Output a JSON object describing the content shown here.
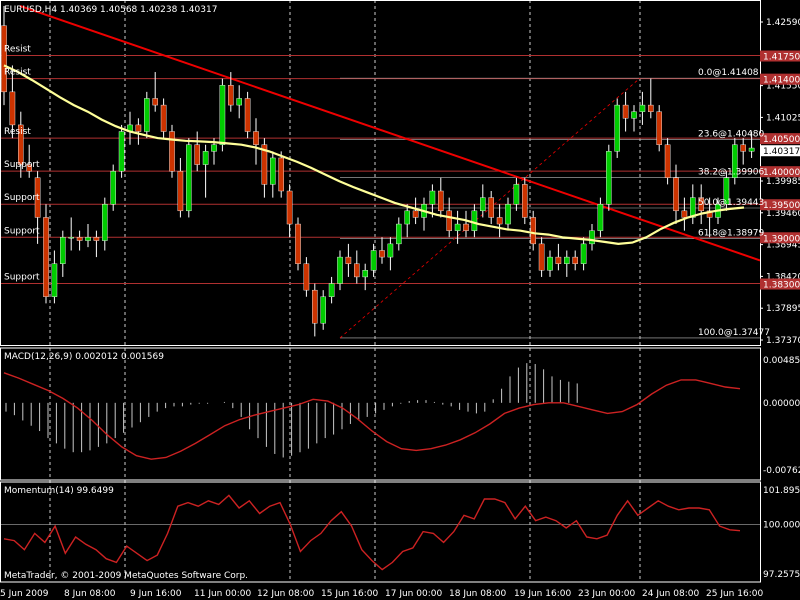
{
  "window": {
    "symbol_header": "EURUSD,H4  1.40369 1.40568 1.40238 1.40317",
    "copyright": "MetaTrader, © 2001-2009 MetaQuotes Software Corp."
  },
  "colors": {
    "background": "#000000",
    "bull_candle": "#00cc00",
    "bear_candle": "#cc3300",
    "moving_average": "#ffff99",
    "trendline": "#ee0000",
    "level_lines": "#b03030",
    "macd_histogram": "#c8c8c8",
    "macd_signal": "#cc2222",
    "momentum": "#cc2222",
    "grid": "#ffffff"
  },
  "chart_data": [
    {
      "type": "candlestick",
      "symbol": "EURUSD",
      "timeframe": "H4",
      "ohlc_current": {
        "open": 1.40369,
        "high": 1.40568,
        "low": 1.40238,
        "close": 1.40317
      },
      "current_price_label": "1.40317",
      "ylim": [
        1.3737,
        1.4259
      ],
      "y_tick_labels": [
        "1.42590",
        "1.42065",
        "1.41550",
        "1.41025",
        "1.40505",
        "1.39985",
        "1.39460",
        "1.38945",
        "1.38420",
        "1.37895",
        "1.37370"
      ],
      "x_tick_labels": [
        "5 Jun 2009",
        "8 Jun 08:00",
        "9 Jun 16:00",
        "11 Jun 00:00",
        "12 Jun 08:00",
        "15 Jun 16:00",
        "17 Jun 00:00",
        "18 Jun 08:00",
        "19 Jun 16:00",
        "23 Jun 00:00",
        "24 Jun 08:00",
        "25 Jun 16:00"
      ],
      "candles": [
        [
          1.422,
          1.425,
          1.41,
          1.412
        ],
        [
          1.412,
          1.416,
          1.405,
          1.407
        ],
        [
          1.407,
          1.409,
          1.399,
          1.401
        ],
        [
          1.401,
          1.404,
          1.399,
          1.4
        ],
        [
          1.399,
          1.4,
          1.389,
          1.393
        ],
        [
          1.393,
          1.395,
          1.38,
          1.381
        ],
        [
          1.381,
          1.388,
          1.38,
          1.386
        ],
        [
          1.386,
          1.391,
          1.384,
          1.39
        ],
        [
          1.39,
          1.393,
          1.388,
          1.39
        ],
        [
          1.39,
          1.391,
          1.388,
          1.3895
        ],
        [
          1.3895,
          1.392,
          1.3885,
          1.39
        ],
        [
          1.39,
          1.391,
          1.387,
          1.3895
        ],
        [
          1.3895,
          1.396,
          1.388,
          1.395
        ],
        [
          1.395,
          1.401,
          1.394,
          1.4
        ],
        [
          1.4,
          1.407,
          1.399,
          1.406
        ],
        [
          1.406,
          1.409,
          1.404,
          1.407
        ],
        [
          1.407,
          1.408,
          1.404,
          1.406
        ],
        [
          1.406,
          1.412,
          1.405,
          1.411
        ],
        [
          1.411,
          1.415,
          1.409,
          1.41
        ],
        [
          1.41,
          1.411,
          1.405,
          1.406
        ],
        [
          1.406,
          1.407,
          1.399,
          1.4
        ],
        [
          1.4,
          1.402,
          1.393,
          1.394
        ],
        [
          1.394,
          1.405,
          1.393,
          1.404
        ],
        [
          1.404,
          1.406,
          1.4,
          1.401
        ],
        [
          1.401,
          1.404,
          1.396,
          1.403
        ],
        [
          1.403,
          1.405,
          1.401,
          1.404
        ],
        [
          1.404,
          1.414,
          1.403,
          1.413
        ],
        [
          1.413,
          1.415,
          1.409,
          1.41
        ],
        [
          1.41,
          1.413,
          1.408,
          1.411
        ],
        [
          1.411,
          1.412,
          1.405,
          1.406
        ],
        [
          1.406,
          1.408,
          1.401,
          1.404
        ],
        [
          1.404,
          1.405,
          1.396,
          1.398
        ],
        [
          1.398,
          1.403,
          1.396,
          1.402
        ],
        [
          1.402,
          1.403,
          1.396,
          1.397
        ],
        [
          1.397,
          1.398,
          1.39,
          1.392
        ],
        [
          1.392,
          1.393,
          1.385,
          1.386
        ],
        [
          1.386,
          1.387,
          1.381,
          1.382
        ],
        [
          1.382,
          1.383,
          1.375,
          1.377
        ],
        [
          1.377,
          1.382,
          1.376,
          1.381
        ],
        [
          1.381,
          1.384,
          1.38,
          1.383
        ],
        [
          1.383,
          1.388,
          1.382,
          1.387
        ],
        [
          1.387,
          1.389,
          1.384,
          1.386
        ],
        [
          1.386,
          1.388,
          1.383,
          1.384
        ],
        [
          1.384,
          1.386,
          1.382,
          1.385
        ],
        [
          1.385,
          1.389,
          1.384,
          1.388
        ],
        [
          1.388,
          1.39,
          1.386,
          1.387
        ],
        [
          1.387,
          1.39,
          1.385,
          1.389
        ],
        [
          1.389,
          1.393,
          1.388,
          1.392
        ],
        [
          1.392,
          1.395,
          1.39,
          1.394
        ],
        [
          1.394,
          1.396,
          1.392,
          1.393
        ],
        [
          1.393,
          1.396,
          1.391,
          1.395
        ],
        [
          1.395,
          1.398,
          1.393,
          1.397
        ],
        [
          1.397,
          1.399,
          1.393,
          1.394
        ],
        [
          1.394,
          1.396,
          1.39,
          1.391
        ],
        [
          1.391,
          1.394,
          1.389,
          1.392
        ],
        [
          1.392,
          1.394,
          1.39,
          1.391
        ],
        [
          1.391,
          1.395,
          1.39,
          1.394
        ],
        [
          1.394,
          1.398,
          1.393,
          1.396
        ],
        [
          1.396,
          1.397,
          1.392,
          1.393
        ],
        [
          1.393,
          1.395,
          1.39,
          1.392
        ],
        [
          1.392,
          1.396,
          1.391,
          1.395
        ],
        [
          1.395,
          1.399,
          1.394,
          1.398
        ],
        [
          1.398,
          1.399,
          1.392,
          1.393
        ],
        [
          1.393,
          1.394,
          1.388,
          1.389
        ],
        [
          1.389,
          1.39,
          1.384,
          1.385
        ],
        [
          1.385,
          1.388,
          1.384,
          1.387
        ],
        [
          1.387,
          1.389,
          1.385,
          1.386
        ],
        [
          1.386,
          1.388,
          1.384,
          1.387
        ],
        [
          1.387,
          1.388,
          1.385,
          1.386
        ],
        [
          1.386,
          1.39,
          1.385,
          1.389
        ],
        [
          1.389,
          1.392,
          1.388,
          1.391
        ],
        [
          1.391,
          1.396,
          1.39,
          1.395
        ],
        [
          1.395,
          1.404,
          1.394,
          1.403
        ],
        [
          1.403,
          1.411,
          1.402,
          1.41
        ],
        [
          1.41,
          1.412,
          1.406,
          1.408
        ],
        [
          1.408,
          1.41,
          1.406,
          1.409
        ],
        [
          1.409,
          1.412,
          1.407,
          1.41
        ],
        [
          1.41,
          1.414,
          1.408,
          1.409
        ],
        [
          1.409,
          1.41,
          1.403,
          1.404
        ],
        [
          1.404,
          1.405,
          1.398,
          1.399
        ],
        [
          1.399,
          1.401,
          1.392,
          1.394
        ],
        [
          1.394,
          1.396,
          1.391,
          1.393
        ],
        [
          1.393,
          1.398,
          1.392,
          1.396
        ],
        [
          1.396,
          1.398,
          1.392,
          1.394
        ],
        [
          1.394,
          1.396,
          1.39,
          1.393
        ],
        [
          1.393,
          1.396,
          1.392,
          1.395
        ],
        [
          1.395,
          1.4,
          1.394,
          1.399
        ],
        [
          1.399,
          1.405,
          1.398,
          1.404
        ],
        [
          1.404,
          1.405,
          1.401,
          1.403
        ],
        [
          1.403,
          1.406,
          1.402,
          1.4035
        ]
      ],
      "moving_average": [
        1.416,
        1.415,
        1.4138,
        1.4125,
        1.4112,
        1.41,
        1.409,
        1.4078,
        1.4068,
        1.406,
        1.4055,
        1.405,
        1.4048,
        1.4046,
        1.4045,
        1.4044,
        1.4042,
        1.404,
        1.4036,
        1.403,
        1.4022,
        1.4014,
        1.4005,
        1.3995,
        1.3985,
        1.3976,
        1.3968,
        1.396,
        1.3952,
        1.3946,
        1.394,
        1.3934,
        1.393,
        1.3926,
        1.392,
        1.3916,
        1.3912,
        1.391,
        1.3906,
        1.3904,
        1.39,
        1.3898,
        1.3896,
        1.3893,
        1.389,
        1.3892,
        1.39,
        1.3912,
        1.3922,
        1.393,
        1.3936,
        1.394,
        1.3943,
        1.3945
      ],
      "trendline": {
        "from": [
          "5 Jun 2009",
          1.425
        ],
        "to": [
          "after 25 Jun 16:00",
          1.3865
        ]
      },
      "horizontal_levels": [
        {
          "label": "Resist",
          "price": 1.4175,
          "tag": "1.41750"
        },
        {
          "label": "Resist",
          "price": 1.414,
          "tag": "1.41400"
        },
        {
          "label": "Resist",
          "price": 1.405,
          "tag": "1.40500"
        },
        {
          "label": "Support",
          "price": 1.4,
          "tag": "1.40000"
        },
        {
          "label": "Support",
          "price": 1.395,
          "tag": "1.39500"
        },
        {
          "label": "Support",
          "price": 1.39,
          "tag": "1.39000"
        },
        {
          "label": "Support",
          "price": 1.383,
          "tag": "1.38300"
        }
      ],
      "fibonacci": {
        "high": 1.41408,
        "low": 1.37477,
        "levels": [
          {
            "label": "0.0@1.41408",
            "price": 1.41408
          },
          {
            "label": "23.6@1.40480",
            "price": 1.4048
          },
          {
            "label": "38.2@1.39906",
            "price": 1.39906
          },
          {
            "label": "50.0@1.39443",
            "price": 1.39443
          },
          {
            "label": "61.8@1.38979",
            "price": 1.38979
          },
          {
            "label": "100.0@1.37477",
            "price": 1.37477
          }
        ]
      }
    },
    {
      "type": "bar",
      "title": "MACD(12,26,9) 0.002012 0.001569",
      "ylim": [
        -0.00762,
        0.004857
      ],
      "y_tick_labels": [
        "0.004857",
        "0.000000",
        "-0.00762"
      ],
      "histogram": [
        -0.001,
        -0.0014,
        -0.002,
        -0.0026,
        -0.0032,
        -0.004,
        -0.0046,
        -0.0052,
        -0.0056,
        -0.0056,
        -0.0054,
        -0.005,
        -0.0046,
        -0.004,
        -0.0034,
        -0.0028,
        -0.0022,
        -0.0016,
        -0.001,
        -0.0006,
        -0.0004,
        -0.0004,
        -0.0002,
        -0.0001,
        -0.0001,
        0.0,
        0.0001,
        -0.0006,
        -0.0016,
        -0.003,
        -0.004,
        -0.005,
        -0.0058,
        -0.0062,
        -0.006,
        -0.0056,
        -0.0052,
        -0.0046,
        -0.004,
        -0.0036,
        -0.003,
        -0.0024,
        -0.002,
        -0.0016,
        -0.0012,
        -0.0008,
        -0.0004,
        -0.0001,
        0.0002,
        0.0003,
        0.0003,
        0.0001,
        -0.0002,
        -0.0004,
        -0.0008,
        -0.001,
        -0.0012,
        -0.001,
        0.0004,
        0.0016,
        0.003,
        0.004,
        0.0045,
        0.0044,
        0.0038,
        0.003,
        0.0026,
        0.0024,
        0.0022
      ],
      "signal_line": [
        0.0034,
        0.0028,
        0.0021,
        0.0014,
        0.0005,
        -0.0006,
        -0.002,
        -0.0036,
        -0.005,
        -0.006,
        -0.0064,
        -0.0062,
        -0.0055,
        -0.0046,
        -0.0036,
        -0.0026,
        -0.0019,
        -0.0014,
        -0.001,
        -0.0006,
        -0.0002,
        0.0004,
        0.0002,
        -0.0006,
        -0.0018,
        -0.0032,
        -0.0044,
        -0.0052,
        -0.0054,
        -0.0052,
        -0.0048,
        -0.0042,
        -0.0034,
        -0.0024,
        -0.0012,
        -0.0006,
        -0.0002,
        0.0,
        0.0,
        -0.0004,
        -0.0008,
        -0.0012,
        -0.001,
        -0.0002,
        0.001,
        0.002,
        0.0026,
        0.0026,
        0.0022,
        0.0018,
        0.0016
      ]
    },
    {
      "type": "line",
      "title": "Momentum(14) 99.6499",
      "ylim": [
        97.2575,
        101.8955
      ],
      "y_tick_labels": [
        "101.8955",
        "100.0000",
        "97.2575"
      ],
      "values": [
        99.2,
        99.1,
        98.6,
        99.5,
        99.0,
        99.9,
        98.4,
        99.3,
        98.9,
        98.6,
        98.1,
        97.9,
        98.8,
        98.4,
        98.0,
        98.3,
        99.5,
        101.0,
        101.2,
        101.0,
        101.3,
        101.1,
        101.6,
        100.9,
        101.3,
        100.6,
        101.0,
        101.2,
        100.0,
        98.5,
        99.1,
        99.5,
        100.2,
        100.7,
        99.9,
        98.6,
        98.0,
        97.5,
        97.9,
        98.5,
        98.7,
        99.6,
        99.5,
        99.0,
        99.6,
        100.5,
        100.3,
        101.4,
        101.4,
        101.2,
        100.3,
        101.0,
        100.2,
        100.4,
        100.2,
        99.8,
        100.2,
        99.3,
        99.2,
        99.4,
        100.5,
        101.3,
        100.5,
        100.9,
        101.3,
        101.0,
        100.8,
        100.9,
        100.9,
        100.8,
        99.9,
        99.7,
        99.65
      ]
    }
  ]
}
